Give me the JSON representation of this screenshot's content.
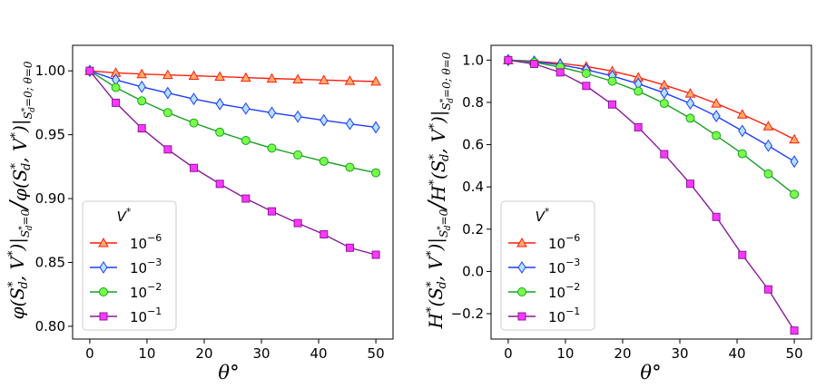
{
  "chart_data": [
    {
      "type": "line",
      "title": "",
      "xlabel": "θ°",
      "ylabel": "φ(S*d, V*)|S*d=0 / φ(S*d, V*)|S*d=0; θ=0",
      "ylabel_parts": {
        "main": "φ(S",
        "sub1": "d",
        "mid": ", V",
        "close": ")|",
        "cond": "S",
        "cond_sub": "d",
        "cond_eq": "=0",
        "slash": "/",
        "tail_main": "φ(S",
        "tail_sub": "d",
        "tail_mid": ", V",
        "tail_close": ")|",
        "tail_cond": "S",
        "tail_cond_sub": "d",
        "tail_cond_eq": "=0; θ=0",
        "star": "*"
      },
      "xlim": [
        -3,
        53
      ],
      "ylim": [
        0.79,
        1.02
      ],
      "xticks": [
        0,
        10,
        20,
        30,
        40,
        50
      ],
      "xtick_labels": [
        "0",
        "10",
        "20",
        "30",
        "40",
        "50"
      ],
      "yticks": [
        0.8,
        0.85,
        0.9,
        0.95,
        1.0
      ],
      "ytick_labels": [
        "0.80",
        "0.85",
        "0.90",
        "0.95",
        "1.00"
      ],
      "legend": {
        "title": "V*",
        "title_main": "V",
        "title_sup": "*",
        "placement": "lower-left"
      },
      "x": [
        0,
        4.545,
        9.091,
        13.636,
        18.182,
        22.727,
        27.273,
        31.818,
        36.364,
        40.909,
        45.455,
        50
      ],
      "series": [
        {
          "name": "10^-6",
          "base": "10",
          "exp": "−6",
          "color": "#ff1e0e",
          "fill": "#ffae6a",
          "marker": "triangle",
          "values": [
            1.0,
            0.9985,
            0.9975,
            0.9968,
            0.9962,
            0.9955,
            0.9947,
            0.994,
            0.9934,
            0.9928,
            0.9922,
            0.9917
          ]
        },
        {
          "name": "10^-3",
          "base": "10",
          "exp": "−3",
          "color": "#1f3dff",
          "fill": "#b3e1ff",
          "marker": "diamond",
          "values": [
            1.0,
            0.993,
            0.9875,
            0.9827,
            0.978,
            0.974,
            0.9705,
            0.9672,
            0.9642,
            0.9613,
            0.9585,
            0.9558
          ]
        },
        {
          "name": "10^-2",
          "base": "10",
          "exp": "−2",
          "color": "#18a023",
          "fill": "#78ff4a",
          "marker": "circle",
          "values": [
            1.0,
            0.987,
            0.9765,
            0.9673,
            0.9592,
            0.952,
            0.9455,
            0.9395,
            0.9342,
            0.9292,
            0.9245,
            0.9202
          ]
        },
        {
          "name": "10^-1",
          "base": "10",
          "exp": "−1",
          "color": "#8a1a9b",
          "fill": "#ff36ff",
          "marker": "square",
          "values": [
            1.0,
            0.975,
            0.955,
            0.9385,
            0.924,
            0.9115,
            0.9,
            0.89,
            0.8808,
            0.872,
            0.8615,
            0.856
          ]
        }
      ]
    },
    {
      "type": "line",
      "title": "",
      "xlabel": "θ°",
      "ylabel": "H*(S*d, V*)|S*d=0 / H*(S*d, V*)|S*d=0; θ=0",
      "ylabel_parts": {
        "main": "H",
        "star": "*",
        "open": "(S",
        "sub1": "d",
        "mid": ", V",
        "close": ")|",
        "cond": "S",
        "cond_sub": "d",
        "cond_eq": "=0",
        "slash": "/",
        "tail_main": "H",
        "tail_open": "(S",
        "tail_sub": "d",
        "tail_mid": ", V",
        "tail_close": ")|",
        "tail_cond": "S",
        "tail_cond_sub": "d",
        "tail_cond_eq": "=0; θ=0"
      },
      "xlim": [
        -3,
        53
      ],
      "ylim": [
        -0.32,
        1.07
      ],
      "xticks": [
        0,
        10,
        20,
        30,
        40,
        50
      ],
      "xtick_labels": [
        "0",
        "10",
        "20",
        "30",
        "40",
        "50"
      ],
      "yticks": [
        -0.2,
        0.0,
        0.2,
        0.4,
        0.6,
        0.8,
        1.0
      ],
      "ytick_labels": [
        "−0.2",
        "0.0",
        "0.2",
        "0.4",
        "0.6",
        "0.8",
        "1.0"
      ],
      "legend": {
        "title": "V*",
        "title_main": "V",
        "title_sup": "*",
        "placement": "lower-left"
      },
      "x": [
        0,
        4.545,
        9.091,
        13.636,
        18.182,
        22.727,
        27.273,
        31.818,
        36.364,
        40.909,
        45.455,
        50
      ],
      "series": [
        {
          "name": "10^-6",
          "base": "10",
          "exp": "−6",
          "color": "#ff1e0e",
          "fill": "#ffae6a",
          "marker": "triangle",
          "values": [
            1.0,
            0.995,
            0.985,
            0.97,
            0.948,
            0.918,
            0.882,
            0.842,
            0.795,
            0.743,
            0.687,
            0.625
          ]
        },
        {
          "name": "10^-3",
          "base": "10",
          "exp": "−3",
          "color": "#1f3dff",
          "fill": "#b3e1ff",
          "marker": "diamond",
          "values": [
            1.0,
            0.993,
            0.978,
            0.955,
            0.925,
            0.888,
            0.845,
            0.795,
            0.735,
            0.665,
            0.595,
            0.52
          ]
        },
        {
          "name": "10^-2",
          "base": "10",
          "exp": "−2",
          "color": "#18a023",
          "fill": "#78ff4a",
          "marker": "circle",
          "values": [
            1.0,
            0.99,
            0.967,
            0.937,
            0.9,
            0.853,
            0.795,
            0.725,
            0.643,
            0.557,
            0.462,
            0.365
          ]
        },
        {
          "name": "10^-1",
          "base": "10",
          "exp": "−1",
          "color": "#8a1a9b",
          "fill": "#ff36ff",
          "marker": "square",
          "values": [
            1.0,
            0.982,
            0.942,
            0.878,
            0.79,
            0.682,
            0.555,
            0.415,
            0.258,
            0.078,
            -0.085,
            -0.28
          ]
        }
      ]
    }
  ]
}
